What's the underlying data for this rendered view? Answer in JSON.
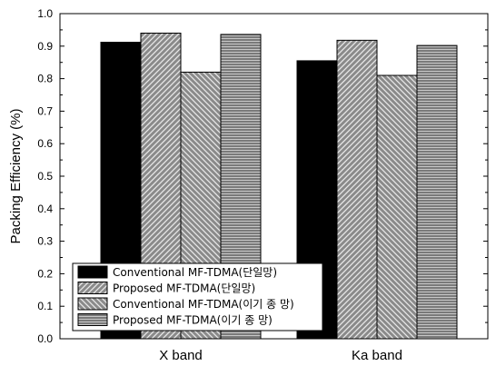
{
  "chart_data": {
    "type": "bar",
    "title": "",
    "xlabel": "",
    "ylabel": "Packing Efficiency (%)",
    "ylim": [
      0,
      1.0
    ],
    "yticks": [
      "0.0",
      "0.1",
      "0.2",
      "0.3",
      "0.4",
      "0.5",
      "0.6",
      "0.7",
      "0.8",
      "0.9",
      "1.0"
    ],
    "grid": false,
    "legend_position": "bottom-left",
    "categories": [
      "X band",
      "Ka band"
    ],
    "series": [
      {
        "name": "Conventional MF-TDMA(단일망)",
        "values": [
          0.912,
          0.855
        ],
        "pattern": "solid-black"
      },
      {
        "name": "Proposed MF-TDMA(단일망)",
        "values": [
          0.94,
          0.918
        ],
        "pattern": "hatch-forward"
      },
      {
        "name": "Conventional MF-TDMA(이기 종  망)",
        "values": [
          0.82,
          0.81
        ],
        "pattern": "hatch-back"
      },
      {
        "name": "Proposed MF-TDMA(이기 종  망)",
        "values": [
          0.936,
          0.902
        ],
        "pattern": "horizontal-lines"
      }
    ],
    "colors": {
      "bar_fill": "#808080",
      "bar_edge": "#000000",
      "solid": "#000000"
    }
  }
}
